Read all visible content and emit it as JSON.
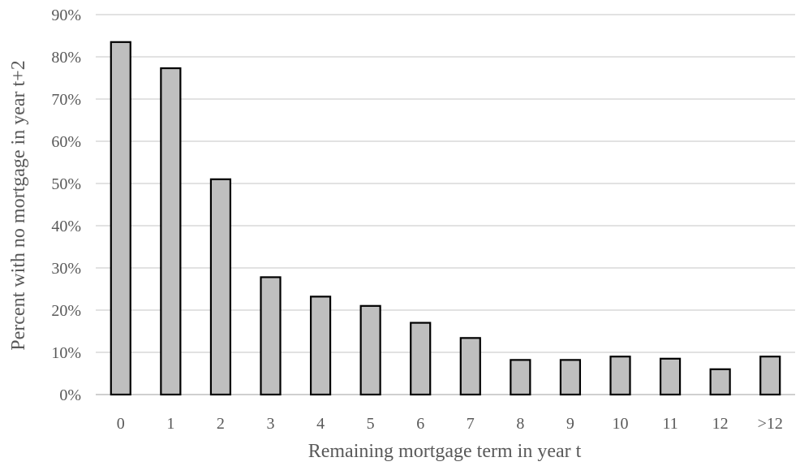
{
  "chart_data": {
    "type": "bar",
    "title": "",
    "xlabel": "Remaining mortgage term in year t",
    "ylabel": "Percent with no mortgage in year t+2",
    "categories": [
      "0",
      "1",
      "2",
      "3",
      "4",
      "5",
      "6",
      "7",
      "8",
      "9",
      "10",
      "11",
      "12",
      ">12"
    ],
    "values": [
      83.5,
      77.3,
      51.0,
      27.8,
      23.2,
      21.0,
      17.0,
      13.4,
      8.2,
      8.2,
      9.0,
      8.5,
      6.0,
      9.0
    ],
    "ylim": [
      0,
      90
    ],
    "yticks": [
      0,
      10,
      20,
      30,
      40,
      50,
      60,
      70,
      80,
      90
    ],
    "ytick_labels": [
      "0%",
      "10%",
      "20%",
      "30%",
      "40%",
      "50%",
      "60%",
      "70%",
      "80%",
      "90%"
    ],
    "grid": true,
    "legend": "none",
    "colors": {
      "bar_fill": "#bfbfbf",
      "bar_edge": "#000000",
      "grid": "#d9d9d9",
      "text": "#595959"
    }
  }
}
